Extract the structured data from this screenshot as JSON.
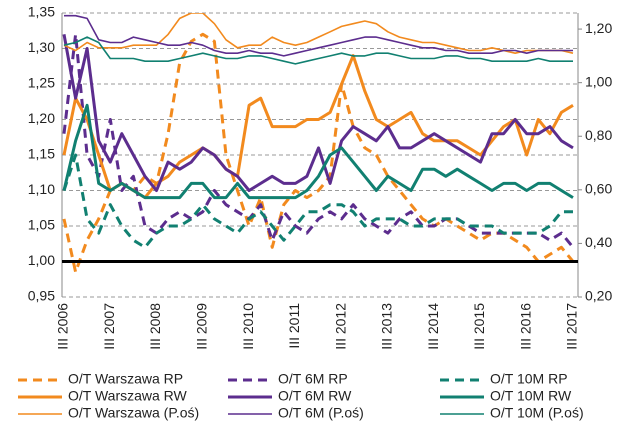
{
  "chart_data": {
    "type": "line",
    "categories": [
      "III 2006",
      null,
      null,
      null,
      "III 2007",
      null,
      null,
      null,
      "III 2008",
      null,
      null,
      null,
      "III 2009",
      null,
      null,
      null,
      "III 2010",
      null,
      null,
      null,
      "III 2011",
      null,
      null,
      null,
      "III 2012",
      null,
      null,
      null,
      "III 2013",
      null,
      null,
      null,
      "III 2014",
      null,
      null,
      null,
      "III 2015",
      null,
      null,
      null,
      "III 2016",
      null,
      null,
      null,
      "III 2017"
    ],
    "ylim": [
      0.95,
      1.35
    ],
    "yticks": [
      {
        "value": 0.95,
        "label": "0,95"
      },
      {
        "value": 1.0,
        "label": "1,00"
      },
      {
        "value": 1.05,
        "label": "1,05"
      },
      {
        "value": 1.1,
        "label": "1,10"
      },
      {
        "value": 1.15,
        "label": "1,15"
      },
      {
        "value": 1.2,
        "label": "1,20"
      },
      {
        "value": 1.25,
        "label": "1,25"
      },
      {
        "value": 1.3,
        "label": "1,30"
      },
      {
        "value": 1.35,
        "label": "1,35"
      }
    ],
    "y2lim": [
      0.2,
      1.26
    ],
    "y2ticks": [
      {
        "value": 0.2,
        "label": "0,20"
      },
      {
        "value": 0.4,
        "label": "0,40"
      },
      {
        "value": 0.6,
        "label": "0,60"
      },
      {
        "value": 0.8,
        "label": "0,80"
      },
      {
        "value": 1.0,
        "label": "1,00"
      },
      {
        "value": 1.2,
        "label": "1,20"
      }
    ],
    "grid": true,
    "reference_line": 1.0,
    "series": [
      {
        "name": "O/T Warszawa RP",
        "color": "#f28a1e",
        "dash": true,
        "width": 3,
        "values": [
          1.06,
          0.985,
          1.03,
          1.06,
          1.1,
          1.11,
          1.1,
          1.12,
          1.11,
          1.18,
          1.28,
          1.31,
          1.32,
          1.31,
          1.15,
          1.1,
          1.05,
          1.09,
          1.02,
          1.08,
          1.1,
          1.09,
          1.1,
          1.12,
          1.25,
          1.19,
          1.16,
          1.15,
          1.12,
          1.1,
          1.08,
          1.06,
          1.05,
          1.06,
          1.05,
          1.04,
          1.03,
          1.04,
          1.04,
          1.03,
          1.02,
          1.0,
          1.01,
          1.02,
          1.0
        ]
      },
      {
        "name": "O/T 6M RP",
        "color": "#5c2d8e",
        "dash": true,
        "width": 3,
        "values": [
          1.18,
          1.32,
          1.15,
          1.12,
          1.2,
          1.1,
          1.12,
          1.05,
          1.04,
          1.06,
          1.07,
          1.06,
          1.07,
          1.1,
          1.08,
          1.07,
          1.06,
          1.08,
          1.03,
          1.07,
          1.05,
          1.04,
          1.06,
          1.07,
          1.06,
          1.08,
          1.06,
          1.05,
          1.04,
          1.06,
          1.07,
          1.05,
          1.05,
          1.06,
          1.06,
          1.05,
          1.04,
          1.04,
          1.04,
          1.04,
          1.04,
          1.04,
          1.03,
          1.04,
          1.02
        ]
      },
      {
        "name": "O/T 10M RP",
        "color": "#118071",
        "dash": true,
        "width": 3,
        "values": [
          1.1,
          1.15,
          1.06,
          1.04,
          1.08,
          1.05,
          1.03,
          1.02,
          1.04,
          1.05,
          1.05,
          1.06,
          1.08,
          1.06,
          1.05,
          1.04,
          1.06,
          1.07,
          1.05,
          1.03,
          1.05,
          1.07,
          1.07,
          1.08,
          1.08,
          1.07,
          1.05,
          1.06,
          1.06,
          1.06,
          1.05,
          1.05,
          1.06,
          1.06,
          1.06,
          1.05,
          1.05,
          1.05,
          1.04,
          1.04,
          1.04,
          1.04,
          1.05,
          1.07,
          1.07
        ]
      },
      {
        "name": "O/T Warszawa RW",
        "color": "#f28a1e",
        "dash": false,
        "width": 3,
        "values": [
          1.15,
          1.23,
          1.2,
          1.15,
          1.1,
          1.11,
          1.1,
          1.09,
          1.11,
          1.12,
          1.14,
          1.15,
          1.16,
          1.15,
          1.13,
          1.12,
          1.22,
          1.23,
          1.19,
          1.19,
          1.19,
          1.2,
          1.2,
          1.21,
          1.25,
          1.29,
          1.24,
          1.2,
          1.19,
          1.2,
          1.21,
          1.18,
          1.17,
          1.17,
          1.17,
          1.16,
          1.15,
          1.17,
          1.19,
          1.2,
          1.15,
          1.2,
          1.18,
          1.21,
          1.22
        ]
      },
      {
        "name": "O/T 6M RW",
        "color": "#5c2d8e",
        "dash": false,
        "width": 3,
        "values": [
          1.32,
          1.23,
          1.3,
          1.17,
          1.14,
          1.18,
          1.15,
          1.12,
          1.1,
          1.14,
          1.13,
          1.14,
          1.16,
          1.15,
          1.13,
          1.12,
          1.1,
          1.11,
          1.12,
          1.11,
          1.11,
          1.12,
          1.16,
          1.11,
          1.17,
          1.19,
          1.18,
          1.17,
          1.19,
          1.16,
          1.16,
          1.17,
          1.18,
          1.17,
          1.16,
          1.15,
          1.14,
          1.18,
          1.18,
          1.2,
          1.18,
          1.18,
          1.19,
          1.17,
          1.16
        ]
      },
      {
        "name": "O/T 10M RW",
        "color": "#118071",
        "dash": false,
        "width": 3,
        "values": [
          1.1,
          1.17,
          1.22,
          1.11,
          1.1,
          1.11,
          1.1,
          1.09,
          1.09,
          1.09,
          1.09,
          1.11,
          1.11,
          1.09,
          1.09,
          1.11,
          1.09,
          1.09,
          1.09,
          1.09,
          1.09,
          1.1,
          1.12,
          1.15,
          1.16,
          1.14,
          1.12,
          1.1,
          1.12,
          1.11,
          1.1,
          1.13,
          1.13,
          1.12,
          1.13,
          1.12,
          1.11,
          1.1,
          1.11,
          1.11,
          1.1,
          1.11,
          1.11,
          1.1,
          1.09
        ]
      },
      {
        "name": "O/T Warszawa (P.oś)",
        "color": "#f28a1e",
        "dash": false,
        "width": 1.6,
        "axis": "y2",
        "values": [
          1.14,
          1.12,
          1.15,
          1.13,
          1.13,
          1.13,
          1.14,
          1.14,
          1.14,
          1.18,
          1.24,
          1.26,
          1.26,
          1.22,
          1.16,
          1.13,
          1.14,
          1.14,
          1.17,
          1.15,
          1.14,
          1.15,
          1.17,
          1.19,
          1.21,
          1.22,
          1.23,
          1.22,
          1.19,
          1.17,
          1.16,
          1.15,
          1.15,
          1.14,
          1.13,
          1.12,
          1.12,
          1.13,
          1.12,
          1.11,
          1.12,
          1.12,
          1.12,
          1.12,
          1.11
        ]
      },
      {
        "name": "O/T 6M (P.oś)",
        "color": "#5c2d8e",
        "dash": false,
        "width": 1.6,
        "axis": "y2",
        "values": [
          1.25,
          1.25,
          1.24,
          1.16,
          1.15,
          1.15,
          1.17,
          1.16,
          1.15,
          1.14,
          1.14,
          1.15,
          1.14,
          1.12,
          1.11,
          1.11,
          1.12,
          1.11,
          1.11,
          1.1,
          1.11,
          1.12,
          1.13,
          1.14,
          1.15,
          1.16,
          1.17,
          1.17,
          1.16,
          1.15,
          1.14,
          1.13,
          1.13,
          1.12,
          1.12,
          1.11,
          1.11,
          1.11,
          1.12,
          1.12,
          1.11,
          1.12,
          1.12,
          1.12,
          1.12
        ]
      },
      {
        "name": "O/T 10M (P.oś)",
        "color": "#118071",
        "dash": false,
        "width": 1.6,
        "axis": "y2",
        "values": [
          1.14,
          1.15,
          1.17,
          1.15,
          1.09,
          1.09,
          1.09,
          1.08,
          1.08,
          1.08,
          1.09,
          1.1,
          1.11,
          1.1,
          1.09,
          1.09,
          1.1,
          1.1,
          1.09,
          1.08,
          1.07,
          1.08,
          1.09,
          1.1,
          1.11,
          1.1,
          1.1,
          1.11,
          1.11,
          1.1,
          1.09,
          1.09,
          1.09,
          1.1,
          1.1,
          1.09,
          1.09,
          1.08,
          1.08,
          1.08,
          1.08,
          1.09,
          1.08,
          1.08,
          1.08
        ]
      }
    ]
  }
}
